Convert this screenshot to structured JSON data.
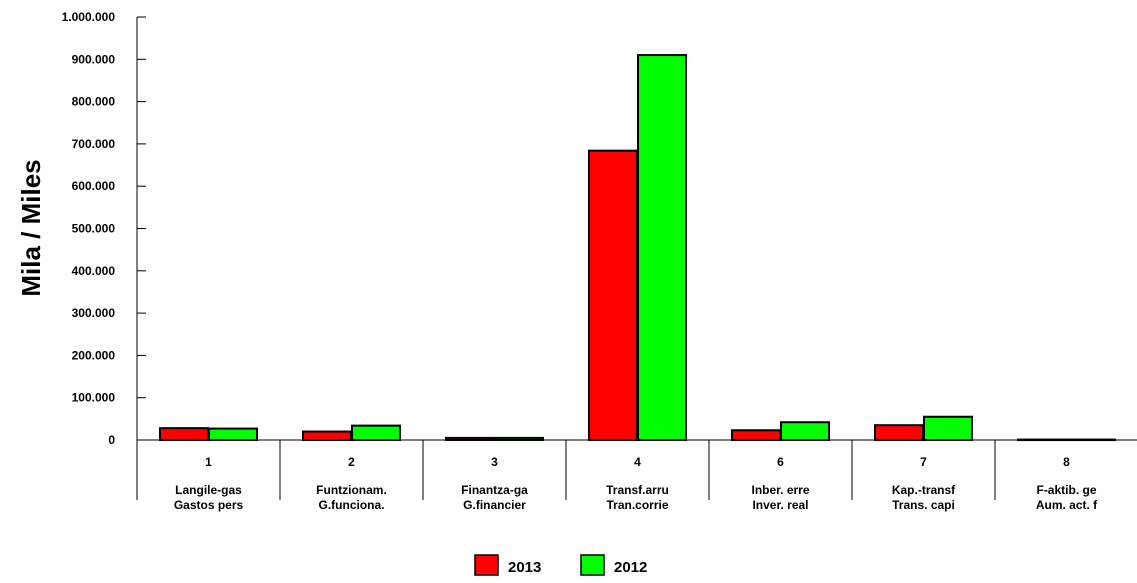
{
  "chart_data": {
    "type": "bar",
    "ylabel": "Mila / Miles",
    "ylim": [
      0,
      1000000
    ],
    "yticks": [
      "0",
      "100.000",
      "200.000",
      "300.000",
      "400.000",
      "500.000",
      "600.000",
      "700.000",
      "800.000",
      "900.000",
      "1.000.000"
    ],
    "categories": [
      {
        "code": "1",
        "line1": "Langile-gas",
        "line2": "Gastos pers"
      },
      {
        "code": "2",
        "line1": "Funtzionam.",
        "line2": "G.funciona."
      },
      {
        "code": "3",
        "line1": "Finantza-ga",
        "line2": "G.financier"
      },
      {
        "code": "4",
        "line1": "Transf.arru",
        "line2": "Tran.corrie"
      },
      {
        "code": "6",
        "line1": "Inber. erre",
        "line2": "Inver. real"
      },
      {
        "code": "7",
        "line1": "Kap.-transf",
        "line2": "Trans. capi"
      },
      {
        "code": "8",
        "line1": "F-aktib. ge",
        "line2": "Aum. act. f"
      }
    ],
    "series": [
      {
        "name": "2013",
        "color": "#ff0000",
        "values": [
          28000,
          20000,
          5000,
          684000,
          23000,
          35000,
          1000
        ]
      },
      {
        "name": "2012",
        "color": "#00ff00",
        "values": [
          27000,
          34000,
          5000,
          910000,
          42000,
          55000,
          1000
        ]
      }
    ],
    "legend_position": "bottom",
    "grid": false
  }
}
